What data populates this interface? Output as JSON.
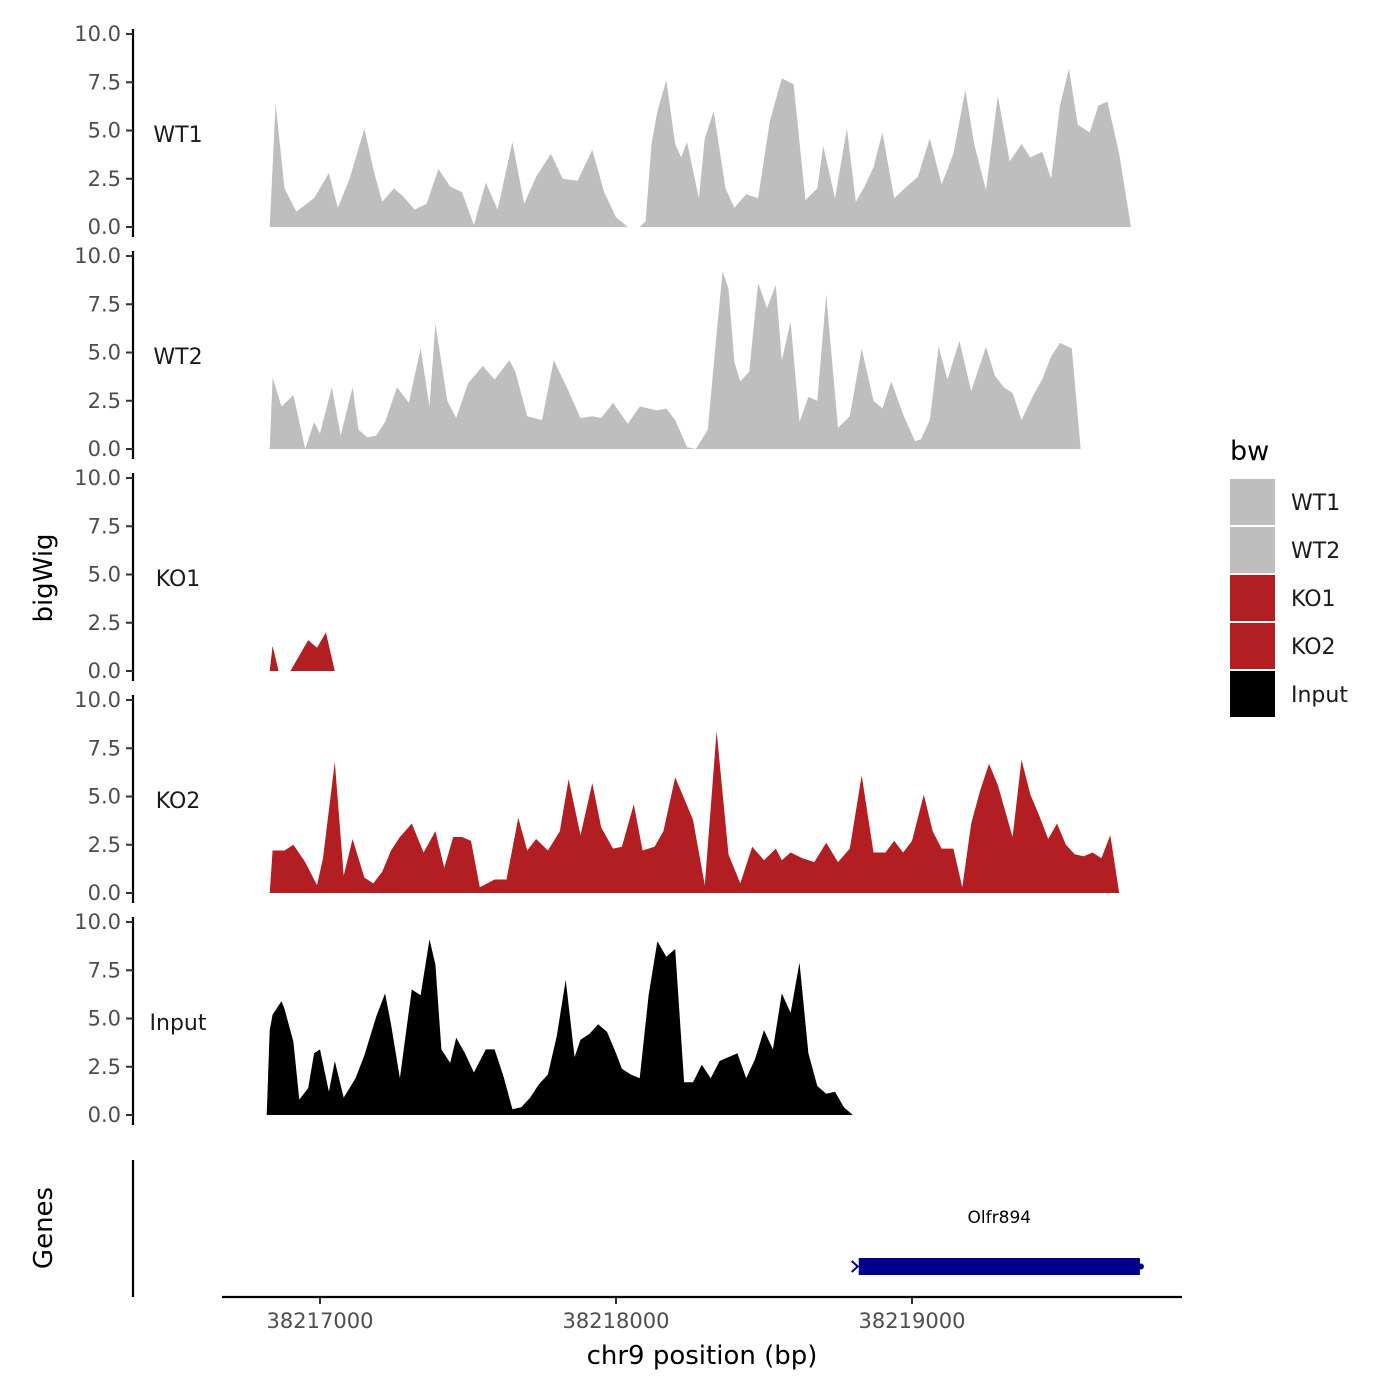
{
  "chart_data": {
    "type": "area",
    "ylabel": "bigWig",
    "xlabel": "chr9 position (bp)",
    "chromosome": "chr9",
    "x_ticks": [
      38217000,
      38218000,
      38219000
    ],
    "x_range": [
      38216700,
      38219950
    ],
    "y_range": [
      0,
      10
    ],
    "y_ticks": [
      "0.0",
      "2.5",
      "5.0",
      "7.5",
      "10.0"
    ],
    "legend": {
      "title": "bw",
      "position": "right",
      "entries": [
        {
          "name": "WT1",
          "color": "#bebebe"
        },
        {
          "name": "WT2",
          "color": "#bebebe"
        },
        {
          "name": "KO1",
          "color": "#b21e21"
        },
        {
          "name": "KO2",
          "color": "#b21e21"
        },
        {
          "name": "Input",
          "color": "#000000"
        }
      ]
    },
    "tracks": [
      {
        "name": "WT1",
        "color": "#bebebe",
        "x": [
          38216830,
          38216850,
          38216880,
          38216920,
          38216980,
          38217030,
          38217060,
          38217100,
          38217150,
          38217180,
          38217210,
          38217250,
          38217280,
          38217320,
          38217360,
          38217400,
          38217440,
          38217480,
          38217520,
          38217560,
          38217600,
          38217650,
          38217690,
          38217730,
          38217780,
          38217820,
          38217870,
          38217920,
          38217960,
          38218000,
          38218040,
          38218080,
          38218100,
          38218120,
          38218140,
          38218170,
          38218200,
          38218220,
          38218240,
          38218280,
          38218300,
          38218330,
          38218370,
          38218400,
          38218440,
          38218480,
          38218520,
          38218560,
          38218600,
          38218640,
          38218680,
          38218700,
          38218740,
          38218780,
          38218810,
          38218840,
          38218870,
          38218900,
          38218940,
          38218990,
          38219020,
          38219060,
          38219100,
          38219140,
          38219180,
          38219210,
          38219250,
          38219290,
          38219330,
          38219370,
          38219400,
          38219440,
          38219470,
          38219500,
          38219530,
          38219560,
          38219600,
          38219630,
          38219660,
          38219700,
          38219740,
          38219770,
          38219790
        ],
        "y": [
          0,
          6.4,
          2,
          0.8,
          1.5,
          2.8,
          1,
          2.5,
          5.1,
          3,
          1.3,
          2,
          1.6,
          0.9,
          1.2,
          3,
          2.1,
          1.8,
          0.1,
          2.3,
          0.9,
          4.4,
          1.2,
          2.6,
          3.8,
          2.5,
          2.4,
          4,
          1.8,
          0.5,
          0,
          0,
          0.3,
          4.3,
          6,
          7.6,
          4.3,
          3.6,
          4.4,
          1.5,
          4.6,
          6,
          2,
          1,
          1.7,
          1.5,
          5.5,
          7.7,
          7.4,
          1.4,
          2,
          4.2,
          1.5,
          5.1,
          1.3,
          2.1,
          3.1,
          4.9,
          1.5,
          2.2,
          2.6,
          4.6,
          2.2,
          3.8,
          7.1,
          4.3,
          1.9,
          6.8,
          3.4,
          4.3,
          3.6,
          3.9,
          2.5,
          6.3,
          8.2,
          5.3,
          4.9,
          6.3,
          6.5,
          3.8,
          0,
          0,
          0
        ]
      },
      {
        "name": "WT2",
        "color": "#bebebe",
        "x": [
          38216830,
          38216840,
          38216870,
          38216910,
          38216950,
          38216980,
          38217000,
          38217040,
          38217070,
          38217110,
          38217130,
          38217160,
          38217190,
          38217220,
          38217260,
          38217300,
          38217340,
          38217370,
          38217390,
          38217430,
          38217460,
          38217500,
          38217550,
          38217590,
          38217640,
          38217660,
          38217700,
          38217750,
          38217790,
          38217840,
          38217880,
          38217920,
          38217950,
          38217990,
          38218040,
          38218080,
          38218110,
          38218140,
          38218170,
          38218200,
          38218240,
          38218270,
          38218310,
          38218340,
          38218360,
          38218380,
          38218400,
          38218420,
          38218450,
          38218480,
          38218510,
          38218540,
          38218560,
          38218590,
          38218620,
          38218650,
          38218680,
          38218710,
          38218750,
          38218790,
          38218830,
          38218870,
          38218900,
          38218930,
          38218970,
          38219010,
          38219030,
          38219060,
          38219090,
          38219120,
          38219160,
          38219200,
          38219250,
          38219280,
          38219310,
          38219340,
          38219370,
          38219410,
          38219440,
          38219470,
          38219500,
          38219540,
          38219570,
          38219610,
          38219640,
          38219670,
          38219700,
          38219720,
          38219740,
          38219750
        ],
        "y": [
          0,
          3.7,
          2.2,
          2.8,
          0,
          1.4,
          0.8,
          3.2,
          0.7,
          3.2,
          1,
          0.6,
          0.7,
          1.4,
          3.2,
          2.4,
          5.2,
          2.2,
          6.5,
          2.5,
          1.6,
          3.4,
          4.3,
          3.6,
          4.6,
          4,
          1.7,
          1.5,
          4.6,
          3,
          1.6,
          1.7,
          1.6,
          2.4,
          1.3,
          2.2,
          2.1,
          2,
          2.1,
          1.5,
          0.1,
          0,
          1,
          6,
          9.2,
          8.3,
          4.5,
          3.5,
          4,
          8.6,
          7.3,
          8.5,
          4.6,
          6.6,
          1.4,
          2.7,
          2.5,
          8,
          1.1,
          1.7,
          5.2,
          2.5,
          2.1,
          3.5,
          1.8,
          0.4,
          0.5,
          1.5,
          5.3,
          3.6,
          5.6,
          3,
          5.3,
          3.8,
          3.2,
          2.9,
          1.5,
          2.8,
          3.6,
          4.8,
          5.5,
          5.2,
          0,
          0,
          0,
          0,
          0,
          0,
          0,
          0
        ]
      },
      {
        "name": "KO1",
        "color": "#b21e21",
        "x": [
          38216830,
          38216840,
          38216860,
          38216880,
          38216900,
          38216930,
          38216960,
          38216990,
          38217020,
          38217050,
          38217080,
          38217110,
          38217140,
          38217170,
          38217210,
          38217240,
          38217270,
          38217310,
          38217350,
          38217380,
          38217410,
          38217440,
          38217480,
          38217510,
          38217540,
          38217570,
          38217600,
          38217630,
          38217660,
          38217700,
          38217730,
          38217770,
          38217810,
          38217850,
          38217880,
          38217920,
          38217960,
          38218000,
          38218040,
          38218060,
          38218090,
          38218130,
          38218170,
          38218210,
          38218240,
          38218280,
          38218320,
          38218350,
          38218390,
          38218420,
          38218460,
          38218500,
          38218530,
          38218570,
          38218610,
          38218640,
          38218680,
          38218710,
          38218740,
          38218780,
          38218820,
          38218850,
          38218880,
          38218920,
          38218960,
          38218990,
          38219030,
          38219060,
          38219090,
          38219130,
          38219160,
          38219190,
          38219230,
          38219260,
          38219300,
          38219330,
          38219370,
          38219400,
          38219430,
          38219470,
          38219500,
          38219540,
          38219560,
          38219580,
          38219600,
          38219620,
          38219650,
          38219670,
          38219700,
          38219720,
          38219740
        ],
        "y": [
          0,
          1.3,
          0,
          0,
          0,
          0.8,
          1.6,
          1.2,
          2,
          0,
          0,
          0,
          0,
          0,
          0,
          0,
          0,
          0,
          0,
          0,
          0,
          0,
          0,
          0,
          0,
          0,
          0,
          0,
          0,
          0,
          0,
          0,
          0,
          0,
          0,
          0,
          0,
          0,
          0,
          0,
          0,
          0,
          0,
          0,
          0,
          0,
          0,
          0,
          0,
          0,
          0,
          0,
          0,
          0,
          0,
          0,
          0,
          0,
          0,
          0,
          0,
          0,
          0,
          0,
          0,
          0,
          0,
          0,
          0,
          0,
          0,
          0,
          0,
          0,
          0,
          0,
          0,
          0,
          0,
          0,
          0,
          0,
          0,
          0,
          0,
          0,
          0,
          0,
          0,
          0,
          0
        ]
      },
      {
        "name": "KO2",
        "color": "#b21e21",
        "x": [
          38216830,
          38216840,
          38216880,
          38216910,
          38216950,
          38216990,
          38217010,
          38217050,
          38217080,
          38217110,
          38217150,
          38217180,
          38217210,
          38217240,
          38217270,
          38217310,
          38217350,
          38217390,
          38217420,
          38217450,
          38217480,
          38217510,
          38217540,
          38217590,
          38217630,
          38217670,
          38217700,
          38217730,
          38217770,
          38217810,
          38217840,
          38217880,
          38217920,
          38217950,
          38217990,
          38218020,
          38218060,
          38218090,
          38218130,
          38218160,
          38218200,
          38218230,
          38218260,
          38218300,
          38218340,
          38218380,
          38218420,
          38218460,
          38218500,
          38218540,
          38218560,
          38218590,
          38218630,
          38218670,
          38218710,
          38218750,
          38218790,
          38218830,
          38218870,
          38218910,
          38218940,
          38218970,
          38219000,
          38219040,
          38219070,
          38219100,
          38219140,
          38219170,
          38219200,
          38219230,
          38219260,
          38219290,
          38219310,
          38219340,
          38219370,
          38219400,
          38219430,
          38219460,
          38219490,
          38219520,
          38219550,
          38219580,
          38219610,
          38219640,
          38219670,
          38219700,
          38219720,
          38219740
        ],
        "y": [
          0,
          2.2,
          2.2,
          2.5,
          1.6,
          0.4,
          1.8,
          6.8,
          0.9,
          2.8,
          0.8,
          0.5,
          1.1,
          2.2,
          2.9,
          3.6,
          2.1,
          3.2,
          1.3,
          2.9,
          2.9,
          2.7,
          0.3,
          0.7,
          0.7,
          3.9,
          2.2,
          2.8,
          2.2,
          3.2,
          5.9,
          3,
          5.7,
          3.4,
          2.3,
          2.4,
          4.6,
          2.2,
          2.4,
          3.2,
          6,
          4.9,
          3.8,
          0.4,
          8.4,
          2,
          0.5,
          2.4,
          1.7,
          2.3,
          1.7,
          2.1,
          1.8,
          1.6,
          2.6,
          1.6,
          2.3,
          6.1,
          2.1,
          2.1,
          2.7,
          2.1,
          2.7,
          5.1,
          3.2,
          2.3,
          2.3,
          0.3,
          3.6,
          5.3,
          6.7,
          5.6,
          4.5,
          2.9,
          6.9,
          5.1,
          4,
          2.8,
          3.6,
          2.5,
          2,
          1.9,
          2.1,
          1.8,
          3,
          0,
          0,
          0
        ]
      },
      {
        "name": "Input",
        "color": "#000000",
        "x": [
          38216820,
          38216830,
          38216840,
          38216870,
          38216880,
          38216910,
          38216930,
          38216960,
          38216980,
          38217000,
          38217030,
          38217050,
          38217080,
          38217100,
          38217120,
          38217150,
          38217190,
          38217220,
          38217240,
          38217270,
          38217290,
          38217310,
          38217340,
          38217370,
          38217390,
          38217410,
          38217440,
          38217460,
          38217490,
          38217520,
          38217560,
          38217590,
          38217620,
          38217650,
          38217680,
          38217710,
          38217740,
          38217770,
          38217800,
          38217830,
          38217860,
          38217880,
          38217910,
          38217940,
          38217970,
          38218000,
          38218020,
          38218050,
          38218080,
          38218110,
          38218140,
          38218170,
          38218200,
          38218230,
          38218260,
          38218290,
          38218320,
          38218350,
          38218380,
          38218410,
          38218440,
          38218470,
          38218500,
          38218530,
          38218560,
          38218590,
          38218620,
          38218650,
          38218680,
          38218710,
          38218740,
          38218770,
          38218800,
          38218830,
          38218860,
          38218890,
          38218920,
          38218950,
          38218980,
          38219010,
          38219040,
          38219070,
          38219100,
          38219130,
          38219160,
          38219190,
          38219220,
          38219250,
          38219280,
          38219310,
          38219340,
          38219370,
          38219400,
          38219430,
          38219460,
          38219490,
          38219520,
          38219550,
          38219580,
          38219610,
          38219640,
          38219670,
          38219700,
          38219730,
          38219740
        ],
        "y": [
          0,
          4.4,
          5.2,
          5.9,
          5.5,
          3.8,
          0.8,
          1.4,
          3.2,
          3.4,
          1.2,
          2.8,
          0.9,
          1.4,
          1.9,
          3.1,
          5.1,
          6.3,
          4.7,
          1.9,
          4.2,
          6.5,
          6.2,
          9.1,
          7.8,
          3.4,
          2.7,
          4,
          3.2,
          2.2,
          3.4,
          3.4,
          2,
          0.3,
          0.4,
          0.9,
          1.6,
          2.1,
          4.1,
          7,
          3,
          3.9,
          4.2,
          4.7,
          4.3,
          3.2,
          2.4,
          2.1,
          1.9,
          6.2,
          9,
          8.2,
          8.6,
          1.7,
          1.7,
          2.6,
          1.9,
          2.8,
          3,
          3.2,
          1.9,
          2.9,
          4.4,
          3.4,
          6.3,
          5.3,
          7.9,
          3.2,
          1.5,
          1.1,
          1.2,
          0.4,
          0,
          0,
          0,
          0,
          0,
          0,
          0,
          0,
          0,
          0,
          0,
          0,
          0,
          0,
          0,
          0,
          0,
          0,
          0,
          0,
          0,
          0,
          0,
          0,
          0,
          0,
          0,
          0,
          0,
          0,
          0,
          0,
          0
        ]
      }
    ],
    "genes_track": {
      "label": "Genes",
      "genes": [
        {
          "name": "Olfr894",
          "start": 38218820,
          "end": 38219770,
          "strand": "+",
          "color": "#00008b"
        }
      ]
    }
  }
}
